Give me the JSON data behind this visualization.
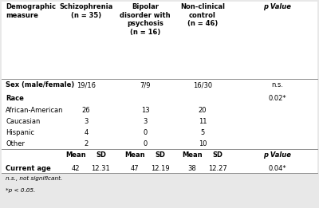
{
  "bg_color": "#e8e8e8",
  "header": [
    [
      "Demographic\nmeasure",
      "Schizophrenia\n(n = 35)",
      "Bipolar\ndisorder with\npsychosis\n(n = 16)",
      "Non-clinical\ncontrol\n(n = 46)",
      "p Value"
    ],
    [
      "bold_cols",
      [
        0,
        1,
        2,
        3,
        4
      ]
    ]
  ],
  "body_rows": [
    {
      "label": "Sex (male/female)",
      "bold": true,
      "v1": "19/16",
      "v2": "7/9",
      "v3": "16/30",
      "p": "n.s."
    },
    {
      "label": "Race",
      "bold": true,
      "v1": "",
      "v2": "",
      "v3": "",
      "p": "0.02*"
    },
    {
      "label": "African-American",
      "bold": false,
      "v1": "26",
      "v2": "13",
      "v3": "20",
      "p": ""
    },
    {
      "label": "Caucasian",
      "bold": false,
      "v1": "3",
      "v2": "3",
      "v3": "11",
      "p": ""
    },
    {
      "label": "Hispanic",
      "bold": false,
      "v1": "4",
      "v2": "0",
      "v3": "5",
      "p": ""
    },
    {
      "label": "Other",
      "bold": false,
      "v1": "2",
      "v2": "0",
      "v3": "10",
      "p": ""
    }
  ],
  "subheader": [
    "",
    "Mean",
    "SD",
    "Mean",
    "SD",
    "Mean",
    "SD",
    "p Value"
  ],
  "bottom_row": {
    "label": "Current age",
    "m1": "42",
    "s1": "12.31",
    "m2": "47",
    "s2": "12.19",
    "m3": "38",
    "s3": "12.27",
    "p": "0.04*"
  },
  "footnotes": [
    "n.s., not significant.",
    "*p < 0.05."
  ],
  "col_x": {
    "label": 0.018,
    "v1": 0.27,
    "v2": 0.455,
    "v3": 0.635,
    "p": 0.87,
    "m1": 0.238,
    "s1": 0.316,
    "m2": 0.422,
    "s2": 0.502,
    "m3": 0.602,
    "s3": 0.682
  },
  "fs": 6.0,
  "fs_foot": 5.2
}
